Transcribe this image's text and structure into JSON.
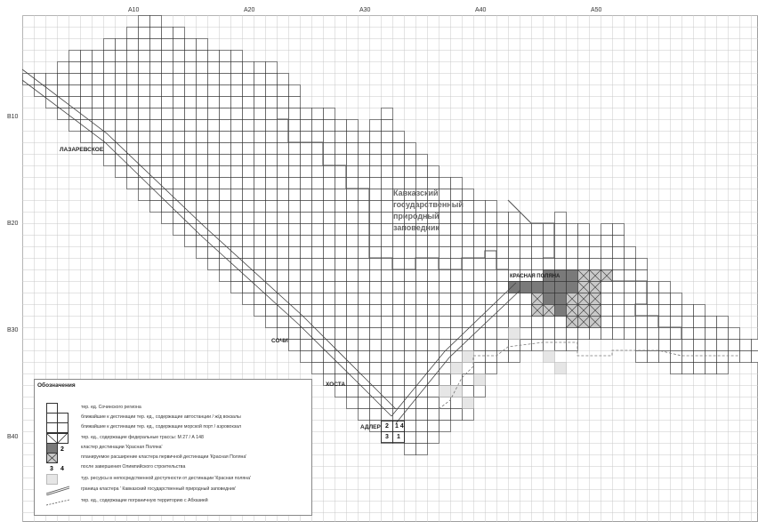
{
  "axes": {
    "top": [
      "A10",
      "A20",
      "A30",
      "A40",
      "A50"
    ],
    "left": [
      "B10",
      "B20",
      "B30",
      "B40"
    ]
  },
  "places": {
    "lazarevskoe": "ЛАЗАРЕВСКОЕ",
    "sochi": "СОЧИ",
    "khosta": "ХОСТА",
    "adler": "АДЛЕР",
    "krasnaya_polyana": "КРАСНАЯ ПОЛЯНА"
  },
  "reserve_label": [
    "Кавказский",
    "государственный",
    "природный",
    "заповедник"
  ],
  "adler_cells": {
    "n1": "1",
    "n2": "2",
    "n3": "3",
    "n4": "4",
    "n14": "1 4"
  },
  "legend": {
    "title": "Обозначения",
    "items": [
      {
        "text": "тер. ед. Сочинского региона"
      },
      {
        "text": "ближайшие к дестинации тер. ед., содержащие автостанции / ж/д вокзалы"
      },
      {
        "text": "ближайшие к дестинации тер. ед., содержащие морской порт / аэровокзал"
      },
      {
        "text": "тер. ед., содержащие федеральные трассы: М 27 / А 148"
      },
      {
        "text": "кластер дестинации 'Красная Поляна'"
      },
      {
        "text": "планируемое расширение кластера первичной дестинации 'Красная Поляна'"
      },
      {
        "text": "после завершения Олимпийского строительства"
      },
      {
        "text": "тур. ресурсы в непосредственной доступности от дестинации 'Красная поляна'"
      },
      {
        "text": "граница кластера ' Кавказский государственный природный заповедник'"
      },
      {
        "text": "тер. ед., содержащие пограничную территорию с Абхазией"
      }
    ],
    "sym_numbers": [
      "1",
      "2",
      "3",
      "4"
    ]
  },
  "colors": {
    "grid": "#c8c8c8",
    "cell_border": "#333333",
    "cluster": "#7a7a7a",
    "expansion": "#c9c9c9",
    "resource": "#e6e6e6",
    "boundary": "#555555"
  }
}
